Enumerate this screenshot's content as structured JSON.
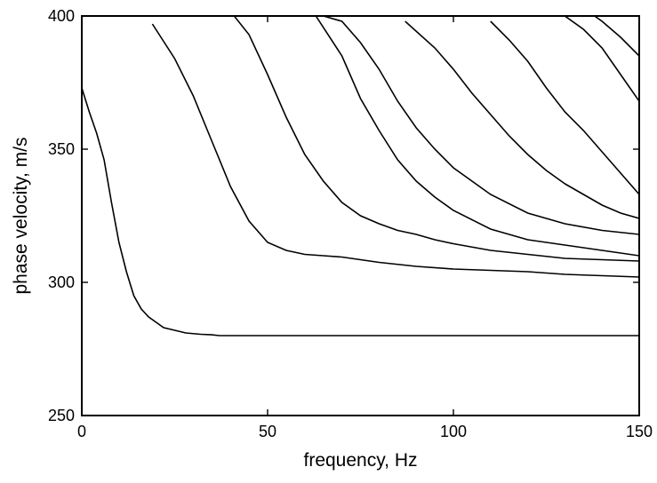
{
  "chart_data": {
    "type": "line",
    "title": "",
    "xlabel": "frequency, Hz",
    "ylabel": "phase velocity, m/s",
    "xlim": [
      0,
      150
    ],
    "ylim": [
      250,
      400
    ],
    "xticks": [
      0,
      50,
      100,
      150
    ],
    "yticks": [
      250,
      300,
      350,
      400
    ],
    "xtick_labels": [
      "0",
      "50",
      "100",
      "150"
    ],
    "ytick_labels": [
      "250",
      "300",
      "350",
      "400"
    ],
    "grid": false,
    "legend": false,
    "line_color": "#000000",
    "series": [
      {
        "x": [
          0,
          2,
          4,
          6,
          8,
          10,
          12,
          14,
          16,
          18,
          20,
          22,
          25,
          28,
          32,
          35,
          37,
          50,
          100,
          150
        ],
        "y": [
          373,
          364,
          356,
          346,
          330,
          315,
          304,
          295,
          290,
          287,
          285,
          283,
          282,
          281,
          280.5,
          280.3,
          280,
          280,
          280,
          280
        ]
      },
      {
        "x": [
          19,
          25,
          30,
          35,
          40,
          45,
          50,
          55,
          60,
          65,
          70,
          80,
          90,
          100,
          110,
          120,
          130,
          140,
          150
        ],
        "y": [
          397,
          384,
          370,
          353,
          336,
          323,
          315,
          312,
          310.5,
          310,
          309.5,
          307.5,
          306,
          305,
          304.5,
          304,
          303,
          302.5,
          302
        ]
      },
      {
        "x": [
          41,
          45,
          50,
          55,
          60,
          65,
          70,
          75,
          80,
          85,
          90,
          95,
          100,
          110,
          120,
          130,
          140,
          150
        ],
        "y": [
          400,
          393,
          378,
          362,
          348,
          338,
          330,
          325,
          322,
          319.5,
          318,
          316,
          314.5,
          312,
          310.5,
          309,
          308.5,
          308
        ]
      },
      {
        "x": [
          63,
          70,
          75,
          80,
          85,
          90,
          95,
          100,
          110,
          120,
          130,
          140,
          150
        ],
        "y": [
          400,
          385,
          369,
          357,
          346,
          338,
          332,
          327,
          320,
          316,
          314,
          312,
          310
        ]
      },
      {
        "x": [
          65,
          70,
          75,
          80,
          85,
          90,
          95,
          100,
          110,
          120,
          130,
          140,
          150
        ],
        "y": [
          400,
          398,
          390,
          380,
          368,
          358,
          350,
          343,
          333,
          326,
          322,
          319.5,
          318
        ]
      },
      {
        "x": [
          87,
          95,
          100,
          105,
          110,
          115,
          120,
          125,
          130,
          135,
          140,
          145,
          150
        ],
        "y": [
          398,
          388,
          380,
          371,
          363,
          355,
          348,
          342,
          337,
          333,
          329,
          326,
          324
        ]
      },
      {
        "x": [
          110,
          115,
          120,
          125,
          130,
          135,
          140,
          145,
          150
        ],
        "y": [
          398,
          391,
          383,
          373,
          364,
          357,
          349,
          341,
          333
        ]
      },
      {
        "x": [
          130,
          135,
          140,
          145,
          150
        ],
        "y": [
          400,
          395,
          388,
          378,
          368
        ]
      },
      {
        "x": [
          138,
          140,
          145,
          150
        ],
        "y": [
          400,
          398,
          392,
          385
        ]
      }
    ]
  }
}
